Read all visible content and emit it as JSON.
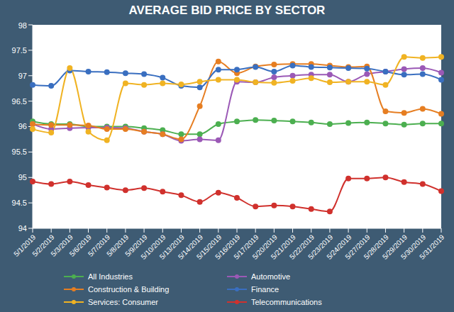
{
  "chart_data": {
    "type": "line",
    "title": "AVERAGE BID PRICE BY SECTOR",
    "categories": [
      "5/1/2019",
      "5/2/2019",
      "5/3/2019",
      "5/6/2019",
      "5/7/2019",
      "5/8/2019",
      "5/9/2019",
      "5/10/2019",
      "5/13/2019",
      "5/14/2019",
      "5/15/2019",
      "5/16/2019",
      "5/17/2019",
      "5/20/2019",
      "5/21/2019",
      "5/22/2019",
      "5/23/2019",
      "5/24/2019",
      "5/27/2019",
      "5/28/2019",
      "5/29/2019",
      "5/30/2019",
      "5/31/2019"
    ],
    "series": [
      {
        "name": "All Industries",
        "color": "#4caf50",
        "values": [
          96.1,
          96.05,
          96.05,
          96.0,
          96.0,
          96.0,
          95.97,
          95.93,
          95.85,
          95.85,
          96.05,
          96.1,
          96.13,
          96.12,
          96.1,
          96.08,
          96.05,
          96.07,
          96.08,
          96.06,
          96.04,
          96.06,
          96.06
        ]
      },
      {
        "name": "Automotive",
        "color": "#9b59b6",
        "values": [
          96.05,
          95.95,
          95.97,
          95.98,
          95.98,
          95.97,
          95.9,
          95.85,
          95.72,
          95.75,
          95.73,
          96.88,
          96.87,
          96.97,
          97.0,
          97.02,
          97.02,
          96.88,
          97.03,
          97.08,
          97.13,
          97.15,
          97.06
        ]
      },
      {
        "name": "Construction & Building",
        "color": "#e67e22",
        "values": [
          96.05,
          96.03,
          96.03,
          96.02,
          95.95,
          95.95,
          95.9,
          95.85,
          95.75,
          96.4,
          97.28,
          97.05,
          97.18,
          97.22,
          97.23,
          97.23,
          97.2,
          97.17,
          97.18,
          96.3,
          96.27,
          96.35,
          96.25
        ]
      },
      {
        "name": "Finance",
        "color": "#3a6fc0",
        "values": [
          96.82,
          96.8,
          97.1,
          97.08,
          97.07,
          97.05,
          97.03,
          96.96,
          96.8,
          96.77,
          97.12,
          97.12,
          97.17,
          97.08,
          97.2,
          97.17,
          97.16,
          97.15,
          97.14,
          97.08,
          97.02,
          97.03,
          96.92
        ]
      },
      {
        "name": "Services: Consumer",
        "color": "#f0b323",
        "values": [
          95.95,
          95.88,
          97.15,
          95.9,
          95.73,
          96.85,
          96.82,
          96.85,
          96.83,
          96.88,
          96.92,
          96.92,
          96.87,
          96.86,
          96.9,
          96.95,
          96.87,
          96.88,
          96.88,
          96.82,
          97.37,
          97.35,
          97.37
        ]
      },
      {
        "name": "Telecommunications",
        "color": "#d0312d",
        "values": [
          94.92,
          94.87,
          94.92,
          94.85,
          94.8,
          94.75,
          94.79,
          94.72,
          94.65,
          94.52,
          94.7,
          94.6,
          94.43,
          94.45,
          94.43,
          94.38,
          94.33,
          94.98,
          94.98,
          95.0,
          94.91,
          94.87,
          94.73
        ]
      }
    ],
    "ylim": [
      94,
      98
    ],
    "yticks": [
      94,
      94.5,
      95,
      95.5,
      96,
      96.5,
      97,
      97.5,
      98
    ],
    "grid": false,
    "marker": "circle",
    "line_style": "solid",
    "legend": "bottom"
  }
}
